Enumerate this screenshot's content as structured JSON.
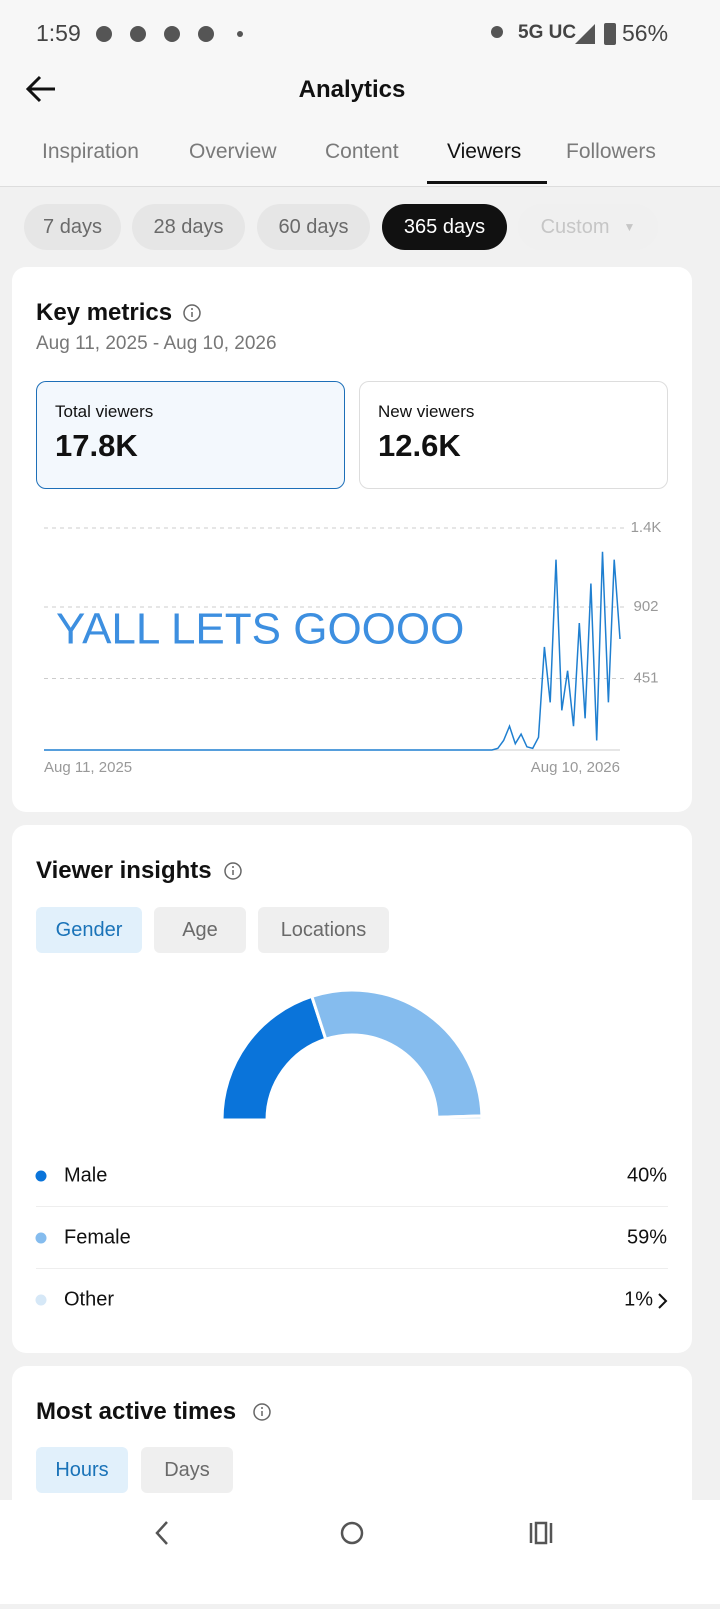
{
  "status_bar": {
    "time": "1:59",
    "network": "5G UC",
    "battery": "56%"
  },
  "header": {
    "title": "Analytics"
  },
  "tabs": [
    "Inspiration",
    "Overview",
    "Content",
    "Viewers",
    "Followers"
  ],
  "active_tab": 3,
  "ranges": [
    "7 days",
    "28 days",
    "60 days",
    "365 days",
    "Custom"
  ],
  "active_range": 3,
  "key_metrics": {
    "title": "Key metrics",
    "date_range": "Aug 11, 2025 - Aug 10, 2026",
    "metrics": [
      {
        "label": "Total viewers",
        "value": "17.8K"
      },
      {
        "label": "New viewers",
        "value": "12.6K"
      }
    ]
  },
  "viewer_insights": {
    "title": "Viewer insights",
    "filters": [
      "Gender",
      "Age",
      "Locations"
    ],
    "active_filter": 0
  },
  "most_active_times": {
    "title": "Most active times",
    "filters": [
      "Hours",
      "Days"
    ],
    "active_filter": 0
  },
  "chart_data": [
    {
      "type": "line",
      "annotation": "YALL LETS GOOOO",
      "color": "#1f7fd0",
      "grid": true,
      "ylim": [
        0,
        1400
      ],
      "yticks": [
        {
          "value": 1400,
          "label": "1.4K"
        },
        902,
        451
      ],
      "categories": [
        "Aug 11, 2025",
        null,
        null,
        null,
        null,
        null,
        null,
        null,
        null,
        null,
        null,
        null,
        null,
        null,
        null,
        null,
        null,
        null,
        null,
        null,
        null,
        null,
        null,
        null,
        null,
        null,
        null,
        null,
        null,
        null,
        null,
        null,
        null,
        null,
        null,
        null,
        null,
        null,
        null,
        null,
        null,
        null,
        null,
        null,
        null,
        null,
        null,
        null,
        null,
        null,
        null,
        null,
        null,
        null,
        null,
        null,
        null,
        null,
        null,
        null,
        null,
        null,
        null,
        null,
        null,
        null,
        null,
        null,
        null,
        null,
        null,
        null,
        null,
        null,
        null,
        null,
        null,
        null,
        null,
        null,
        null,
        null,
        null,
        null,
        null,
        null,
        null,
        null,
        null,
        null,
        null,
        null,
        null,
        null,
        null,
        null,
        null,
        null,
        null,
        "Aug 10, 2026"
      ],
      "values": [
        0,
        0,
        0,
        0,
        0,
        0,
        0,
        0,
        0,
        0,
        0,
        0,
        0,
        0,
        0,
        0,
        0,
        0,
        0,
        0,
        0,
        0,
        0,
        0,
        0,
        0,
        0,
        0,
        0,
        0,
        0,
        0,
        0,
        0,
        0,
        0,
        0,
        0,
        0,
        0,
        0,
        0,
        0,
        0,
        0,
        0,
        0,
        0,
        0,
        0,
        0,
        0,
        0,
        0,
        0,
        0,
        0,
        0,
        0,
        0,
        0,
        0,
        0,
        0,
        0,
        0,
        0,
        0,
        0,
        0,
        0,
        0,
        0,
        0,
        0,
        0,
        0,
        0,
        10,
        60,
        150,
        40,
        100,
        20,
        10,
        80,
        650,
        300,
        1200,
        250,
        500,
        150,
        800,
        200,
        1050,
        60,
        1250,
        300,
        1200,
        700
      ]
    },
    {
      "type": "pie",
      "categories": [
        "Male",
        "Female",
        "Other"
      ],
      "values": [
        40,
        59,
        1
      ],
      "value_labels": [
        "40%",
        "59%",
        "1%"
      ],
      "colors": [
        "#0a74da",
        "#85bcee",
        "#d6e8f7"
      ]
    }
  ]
}
